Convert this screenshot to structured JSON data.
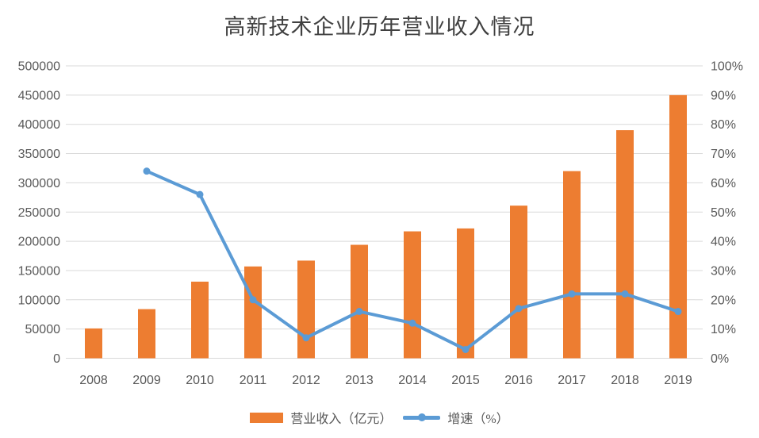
{
  "background_color": "#FFFFFF",
  "chart_data": {
    "type": "bar",
    "subtype": "combo-bar-line-dual-axis",
    "title": "高新技术企业历年营业收入情况",
    "title_color": "#404040",
    "grid": true,
    "grid_color": "#D9D9D9",
    "axis_text_color": "#595959",
    "legend_position": "bottom",
    "categories": [
      "2008",
      "2009",
      "2010",
      "2011",
      "2012",
      "2013",
      "2014",
      "2015",
      "2016",
      "2017",
      "2018",
      "2019"
    ],
    "series": [
      {
        "name": "营业收入（亿元）",
        "type": "bar",
        "axis": "left",
        "color": "#ED7D31",
        "values": [
          51000,
          84000,
          131000,
          157000,
          167000,
          194000,
          217000,
          222000,
          261000,
          320000,
          390000,
          450000
        ]
      },
      {
        "name": "增速（%）",
        "type": "line",
        "axis": "right",
        "color": "#5B9BD5",
        "values": [
          null,
          64,
          56,
          20,
          7,
          16,
          12,
          3,
          17,
          22,
          22,
          16
        ]
      }
    ],
    "left_axis": {
      "min": 0,
      "max": 500000,
      "step": 50000,
      "tick_labels": [
        "0",
        "50000",
        "100000",
        "150000",
        "200000",
        "250000",
        "300000",
        "350000",
        "400000",
        "450000",
        "500000"
      ]
    },
    "right_axis": {
      "min": 0,
      "max": 100,
      "step": 10,
      "unit": "%",
      "tick_labels": [
        "0%",
        "10%",
        "20%",
        "30%",
        "40%",
        "50%",
        "60%",
        "70%",
        "80%",
        "90%",
        "100%"
      ]
    },
    "xlabel": "",
    "ylabel": ""
  }
}
